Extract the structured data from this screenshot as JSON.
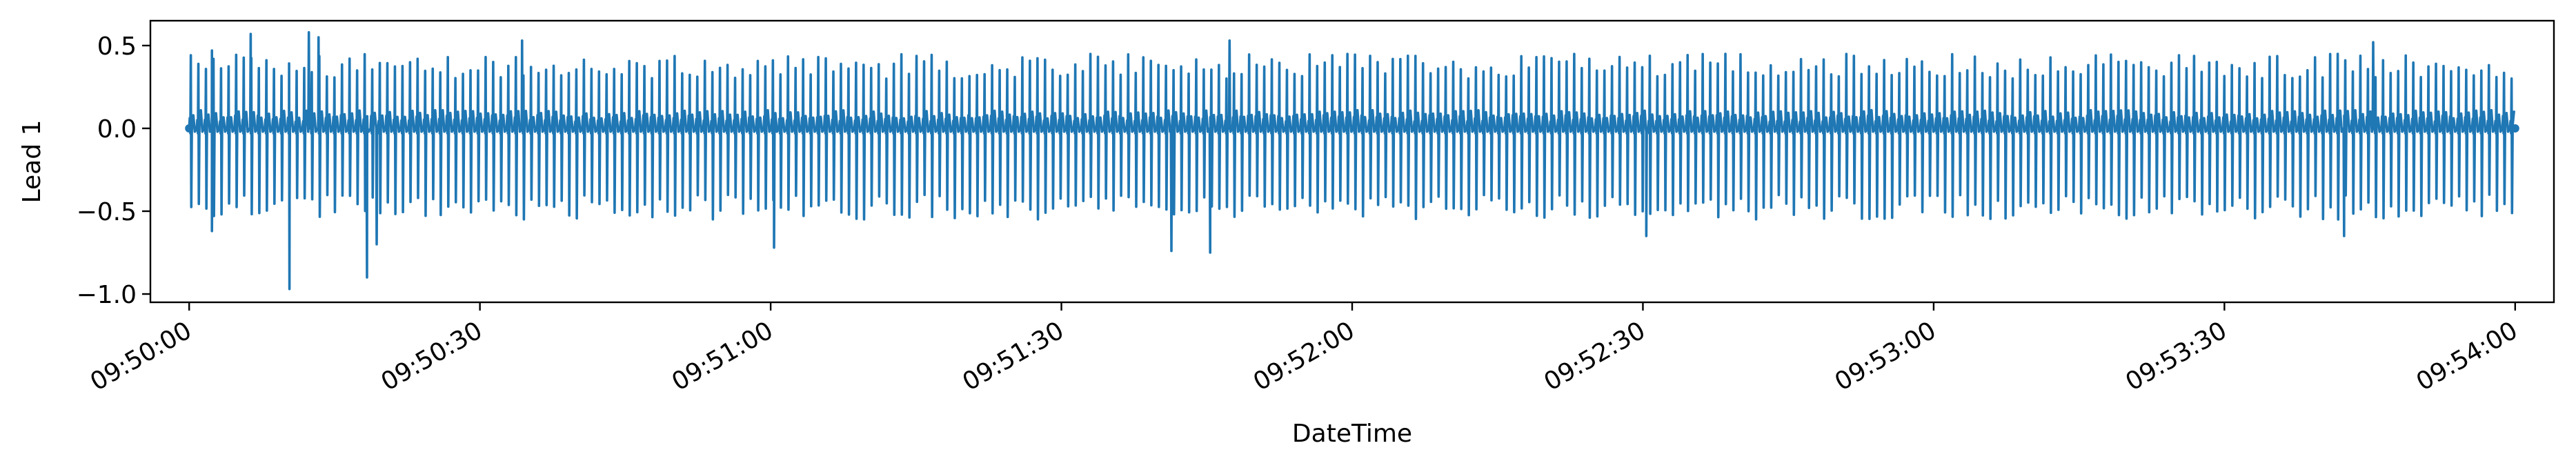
{
  "chart_data": {
    "type": "line",
    "title": "",
    "xlabel": "DateTime",
    "ylabel": "Lead 1",
    "xlim": [
      "09:49:56",
      "09:54:04"
    ],
    "ylim": [
      -1.05,
      0.65
    ],
    "x_ticks": [
      "09:50:00",
      "09:50:30",
      "09:51:00",
      "09:51:30",
      "09:52:00",
      "09:52:30",
      "09:53:00",
      "09:53:30",
      "09:54:00"
    ],
    "y_ticks": [
      0.5,
      0.0,
      -0.5,
      -1.0
    ],
    "y_tick_labels": [
      "0.5",
      "0.0",
      "−0.5",
      "−1.0"
    ],
    "grid": false,
    "legend": "none",
    "series": [
      {
        "color": "#1f77b4",
        "x_start": "09:50:00",
        "x_end": "09:54:00",
        "typical_peak_range": [
          0.3,
          0.45
        ],
        "typical_trough_range": [
          -0.55,
          -0.4
        ],
        "notable_points": [
          {
            "x": "09:50:02",
            "y": 0.47
          },
          {
            "x": "09:50:02",
            "y": -0.62
          },
          {
            "x": "09:50:06",
            "y": 0.57
          },
          {
            "x": "09:50:10",
            "y": -0.97
          },
          {
            "x": "09:50:12",
            "y": 0.58
          },
          {
            "x": "09:50:13",
            "y": 0.55
          },
          {
            "x": "09:50:18",
            "y": -0.9
          },
          {
            "x": "09:50:19",
            "y": -0.7
          },
          {
            "x": "09:50:34",
            "y": 0.53
          },
          {
            "x": "09:51:00",
            "y": -0.72
          },
          {
            "x": "09:51:41",
            "y": -0.74
          },
          {
            "x": "09:51:45",
            "y": -0.75
          },
          {
            "x": "09:51:47",
            "y": 0.53
          },
          {
            "x": "09:52:30",
            "y": -0.65
          },
          {
            "x": "09:53:42",
            "y": -0.65
          },
          {
            "x": "09:53:45",
            "y": 0.52
          }
        ]
      }
    ]
  }
}
